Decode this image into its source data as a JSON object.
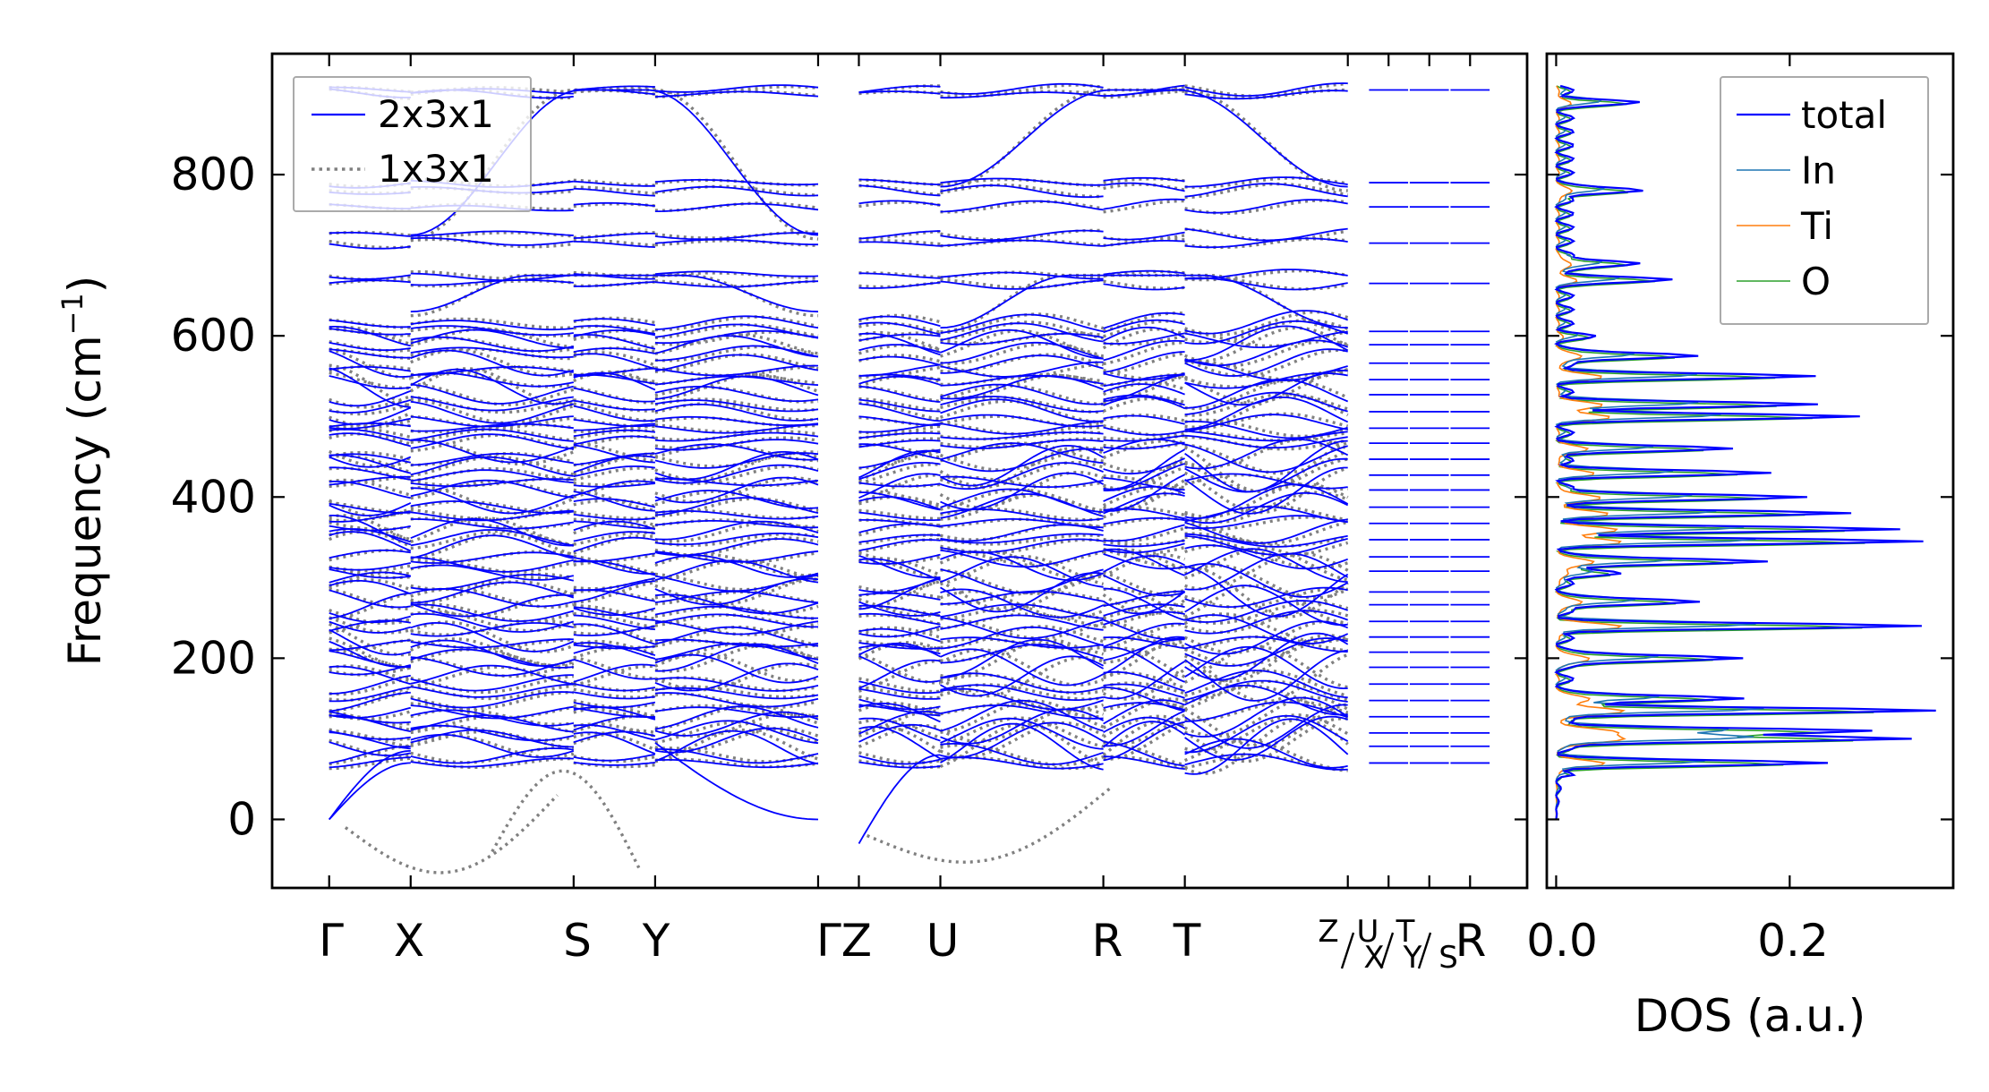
{
  "chart_data": [
    {
      "type": "line",
      "panel": "phonon-bands",
      "ylabel": "Frequency (cm⁻¹)",
      "ylabel_main": "Frequency (cm",
      "ylabel_sup": "−1",
      "ylabel_close": ")",
      "ylim": [
        -85,
        950
      ],
      "yticks": [
        0,
        200,
        400,
        600,
        800
      ],
      "ytick_labels": [
        "0",
        "200",
        "400",
        "600",
        "800"
      ],
      "path_ticks": [
        {
          "label": "Γ",
          "x": 0
        },
        {
          "label": "X",
          "x": 0.5
        },
        {
          "label": "S",
          "x": 1.5
        },
        {
          "label": "Y",
          "x": 2.0
        },
        {
          "label": "Γ",
          "x": 3.0
        },
        {
          "label": "Z",
          "x": 3.25
        },
        {
          "label": "U",
          "x": 3.75
        },
        {
          "label": "R",
          "x": 4.75
        },
        {
          "label": "T",
          "x": 5.25
        },
        {
          "label": "Z",
          "x": 6.25
        },
        {
          "label": "U",
          "x": 6.5
        },
        {
          "label": "T",
          "x": 6.75
        },
        {
          "label": "R",
          "x": 7.0
        }
      ],
      "path_label_text": {
        "gamma1": "Γ",
        "x": "X",
        "s": "S",
        "y": "Y",
        "gammaz": "ΓZ",
        "u": "U",
        "r": "R",
        "t": "T",
        "zx_top": "Z",
        "zx_bot": "X",
        "uy_top": "U",
        "uy_bot": "Y",
        "ts_top": "T",
        "ts_bot": "S",
        "r_end": "R"
      },
      "xlim": [
        -0.35,
        7.35
      ],
      "series": [
        {
          "name": "2x3x1",
          "color": "#0000ff",
          "style": "solid"
        },
        {
          "name": "1x3x1",
          "color": "#808080",
          "style": "dotted"
        }
      ]
    },
    {
      "type": "line",
      "panel": "dos",
      "xlabel": "DOS (a.u.)",
      "xlim": [
        -0.008,
        0.34
      ],
      "xticks": [
        0.0,
        0.2
      ],
      "xtick_labels": [
        "0.0",
        "0.2"
      ],
      "ylim": [
        -85,
        950
      ],
      "series": [
        {
          "name": "total",
          "color": "#0000ff"
        },
        {
          "name": "In",
          "color": "#1f77b4"
        },
        {
          "name": "Ti",
          "color": "#ff7f0e"
        },
        {
          "name": "O",
          "color": "#2ca02c"
        }
      ]
    }
  ]
}
